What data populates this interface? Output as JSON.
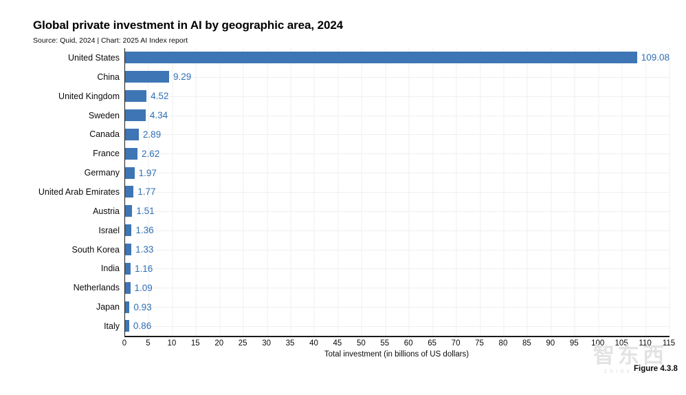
{
  "header": {
    "title": "Global private investment in AI by geographic area, 2024",
    "subtitle": "Source: Quid, 2024 | Chart: 2025 AI Index report"
  },
  "chart_data": {
    "type": "bar",
    "orientation": "horizontal",
    "title": "Global private investment in AI by geographic area, 2024",
    "subtitle": "Source: Quid, 2024 | Chart: 2025 AI Index report",
    "categories": [
      "United States",
      "China",
      "United Kingdom",
      "Sweden",
      "Canada",
      "France",
      "Germany",
      "United Arab Emirates",
      "Austria",
      "Israel",
      "South Korea",
      "India",
      "Netherlands",
      "Japan",
      "Italy"
    ],
    "values": [
      109.08,
      9.29,
      4.52,
      4.34,
      2.89,
      2.62,
      1.97,
      1.77,
      1.51,
      1.36,
      1.33,
      1.16,
      1.09,
      0.93,
      0.86
    ],
    "xlabel": "Total investment (in billions of US dollars)",
    "ylabel": "",
    "xlim": [
      0,
      115
    ],
    "xticks": [
      0,
      5,
      10,
      15,
      20,
      25,
      30,
      35,
      40,
      45,
      50,
      55,
      60,
      65,
      70,
      75,
      80,
      85,
      90,
      95,
      100,
      105,
      110,
      115
    ],
    "grid": true,
    "legend": "none",
    "bar_color": "#3E75B5",
    "value_label_color": "#2F6FB6",
    "grid_color": "#efefef"
  },
  "footer": {
    "figure_label": "Figure 4.3.8",
    "watermark_text": "智东西",
    "watermark_subtext": "zhidx.com"
  }
}
